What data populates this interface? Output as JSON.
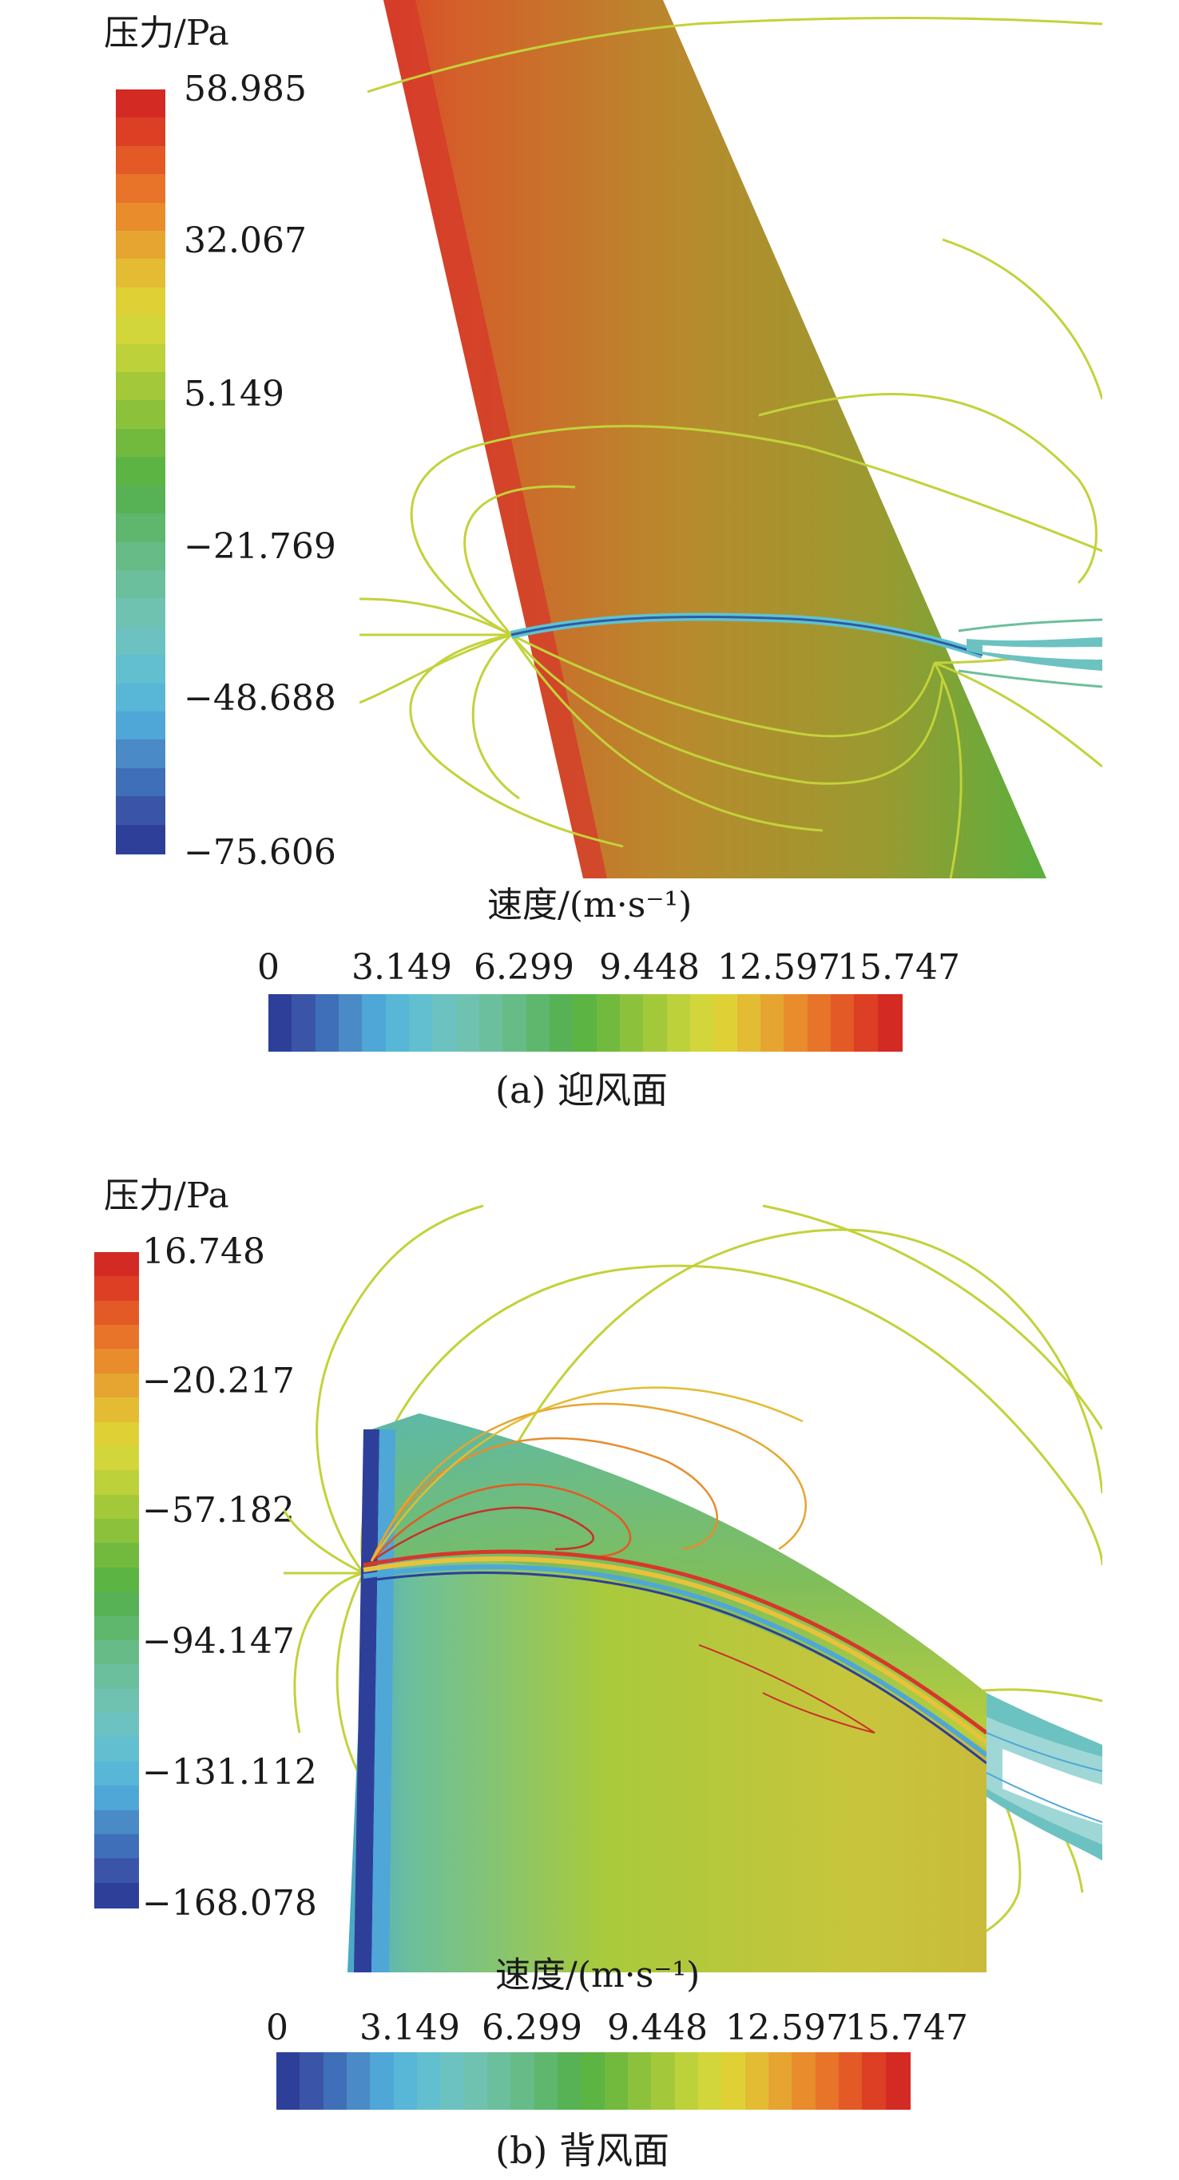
{
  "panels": [
    {
      "id": "a",
      "pressure_title": "压力/Pa",
      "pressure_ticks": [
        "58.985",
        "32.067",
        "5.149",
        "−21.769",
        "−48.688",
        "−75.606"
      ],
      "velocity_title": "速度/(m·s⁻¹)",
      "velocity_ticks": [
        "0",
        "3.149",
        "6.299",
        "9.448",
        "12.597",
        "15.747"
      ],
      "caption": "(a) 迎风面"
    },
    {
      "id": "b",
      "pressure_title": "压力/Pa",
      "pressure_ticks": [
        "16.748",
        "−20.217",
        "−57.182",
        "−94.147",
        "−131.112",
        "−168.078"
      ],
      "velocity_title": "速度/(m·s⁻¹)",
      "velocity_ticks": [
        "0",
        "3.149",
        "6.299",
        "9.448",
        "12.597",
        "15.747"
      ],
      "caption": "(b) 背风面"
    }
  ],
  "colormap": [
    "#2e3f9a",
    "#3a55a8",
    "#3f6fb8",
    "#4a8ac6",
    "#4ea7d6",
    "#58b6d6",
    "#62bfcf",
    "#6cc2c1",
    "#70c2b0",
    "#6cbf9c",
    "#67bb86",
    "#5fb66d",
    "#57b255",
    "#5cb443",
    "#72ba3e",
    "#8cc23b",
    "#a3c93a",
    "#bcd13a",
    "#d2d63a",
    "#dfd036",
    "#e3bc33",
    "#e6a530",
    "#e88c2c",
    "#e77429",
    "#e35a26",
    "#dc3f24",
    "#d42a24"
  ]
}
